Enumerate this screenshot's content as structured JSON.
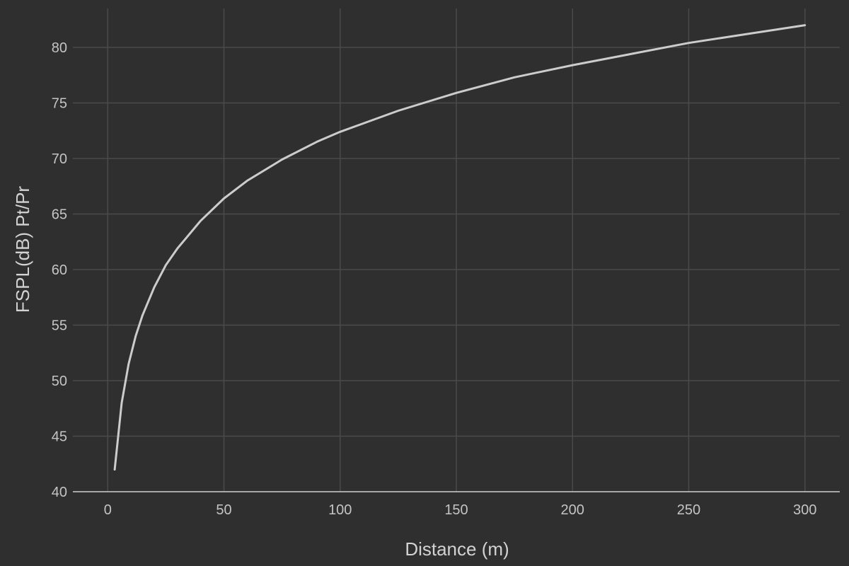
{
  "colors": {
    "background": "#2f2f2f",
    "grid": "#4a4a4a",
    "line": "#cccccc",
    "text": "#c4c4c4"
  },
  "chart_data": {
    "type": "line",
    "xlabel": "Distance (m)",
    "ylabel": "FSPL(dB) Pt/Pr",
    "xlim": [
      -15,
      315
    ],
    "ylim": [
      40,
      83.5
    ],
    "xticks": [
      0,
      50,
      100,
      150,
      200,
      250,
      300
    ],
    "yticks": [
      40,
      45,
      50,
      55,
      60,
      65,
      70,
      75,
      80
    ],
    "grid": true,
    "legend": "none",
    "series": [
      {
        "x": [
          3,
          6,
          9,
          12,
          15,
          20,
          25,
          30,
          40,
          50,
          60,
          75,
          90,
          100,
          125,
          150,
          175,
          200,
          225,
          250,
          275,
          300
        ],
        "y": [
          42.0,
          48.0,
          51.5,
          54.0,
          55.9,
          58.4,
          60.4,
          61.9,
          64.4,
          66.4,
          68.0,
          69.9,
          71.5,
          72.4,
          74.3,
          75.9,
          77.3,
          78.4,
          79.4,
          80.4,
          81.2,
          82.0
        ]
      }
    ]
  }
}
